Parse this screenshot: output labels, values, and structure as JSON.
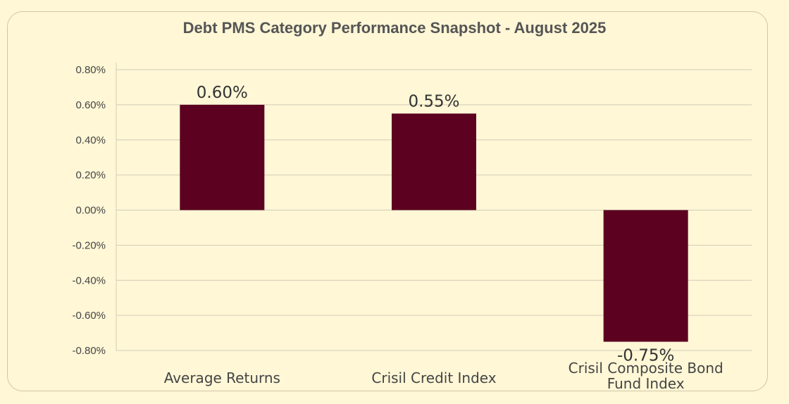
{
  "chart_data": {
    "type": "bar",
    "title": "Debt PMS Category Performance Snapshot - August 2025",
    "categories": [
      [
        "Average Returns"
      ],
      [
        "Crisil Credit Index"
      ],
      [
        "Crisil Composite Bond",
        "Fund Index"
      ]
    ],
    "values": [
      0.6,
      0.55,
      -0.75
    ],
    "data_labels": [
      "0.60%",
      "0.55%",
      "-0.75%"
    ],
    "y_ticks": [
      0.8,
      0.6,
      0.4,
      0.2,
      0.0,
      -0.2,
      -0.4,
      -0.6,
      -0.8
    ],
    "y_tick_labels": [
      "0.80%",
      "0.60%",
      "0.40%",
      "0.20%",
      "0.00%",
      "-0.20%",
      "-0.40%",
      "-0.60%",
      "-0.80%"
    ],
    "ylim": [
      -0.8,
      0.8
    ],
    "grid": true,
    "legend": "none",
    "bar_color": "#5c0120"
  }
}
